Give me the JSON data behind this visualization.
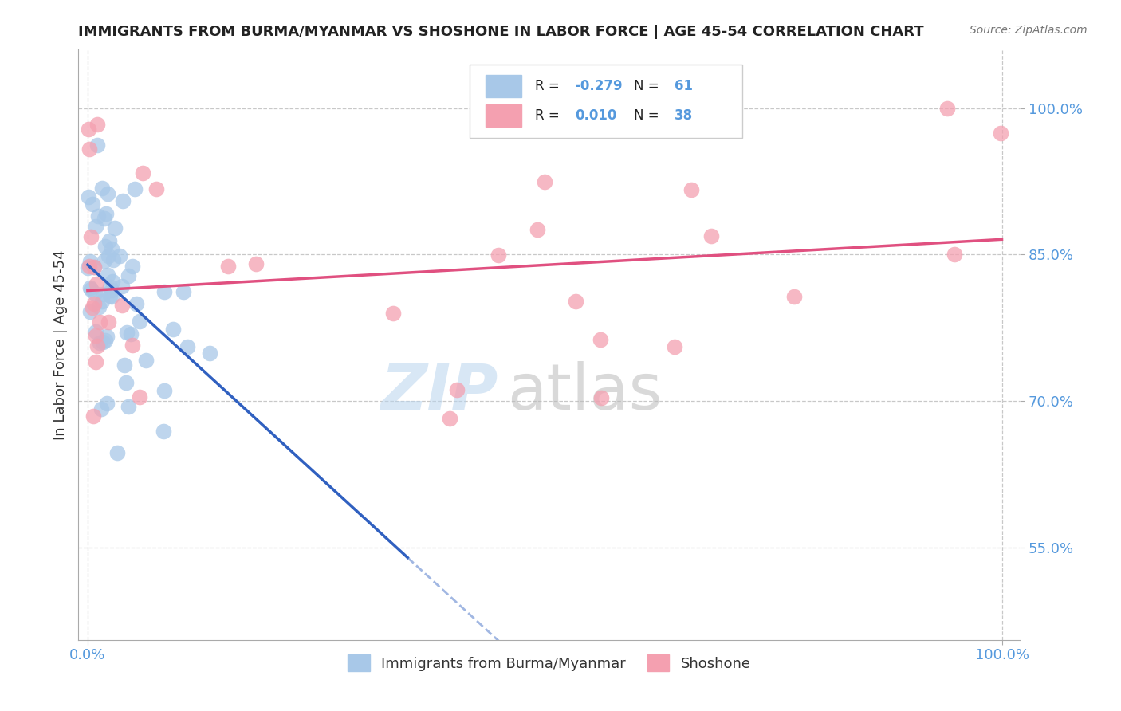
{
  "title": "IMMIGRANTS FROM BURMA/MYANMAR VS SHOSHONE IN LABOR FORCE | AGE 45-54 CORRELATION CHART",
  "source": "Source: ZipAtlas.com",
  "ylabel": "In Labor Force | Age 45-54",
  "xlim": [
    -0.01,
    1.02
  ],
  "ylim": [
    0.455,
    1.06
  ],
  "ytick_vals": [
    0.55,
    0.7,
    0.85,
    1.0
  ],
  "ytick_labels": [
    "55.0%",
    "70.0%",
    "85.0%",
    "100.0%"
  ],
  "xtick_vals": [
    0.0,
    1.0
  ],
  "xtick_labels": [
    "0.0%",
    "100.0%"
  ],
  "legend_r1": "-0.279",
  "legend_n1": "61",
  "legend_r2": "0.010",
  "legend_n2": "38",
  "blue_color": "#a8c8e8",
  "pink_color": "#f4a0b0",
  "line_blue": "#3060c0",
  "line_pink": "#e05080",
  "grid_color": "#c8c8c8",
  "tick_color": "#5599dd"
}
